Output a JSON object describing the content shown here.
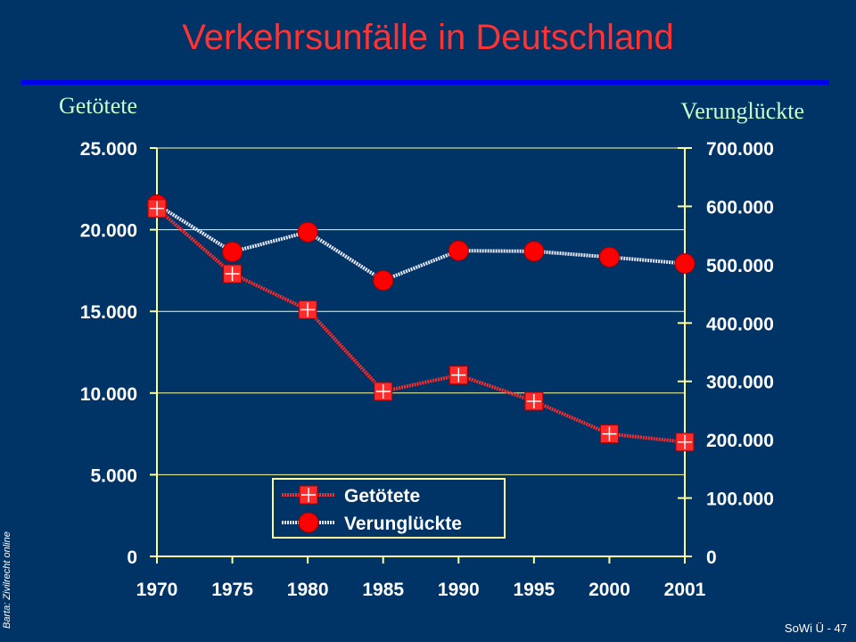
{
  "title": "Verkehrsunfälle in Deutschland",
  "footer": "SoWi Ü - 47",
  "source_note": "Barta: Zivilrecht online",
  "colors": {
    "background": "#003366",
    "title": "#ff3333",
    "rule": "#0000ee",
    "axis": "#ffff99",
    "killed": "#ff2a2a",
    "injured_line": "#e8e8f4",
    "injured_marker": "#ff0000"
  },
  "chart_data": {
    "type": "line",
    "left_axis_title": "Getötete",
    "right_axis_title": "Verunglückte",
    "categories": [
      "1970",
      "1975",
      "1980",
      "1985",
      "1990",
      "1995",
      "2000",
      "2001"
    ],
    "left_ylim": [
      0,
      25000
    ],
    "right_ylim": [
      0,
      700000
    ],
    "left_ticks": [
      "0",
      "5.000",
      "10.000",
      "15.000",
      "20.000",
      "25.000"
    ],
    "right_ticks": [
      "0",
      "100.000",
      "200.000",
      "300.000",
      "400.000",
      "500.000",
      "600.000",
      "700.000"
    ],
    "grid": true,
    "legend": "bottom-center",
    "series": [
      {
        "name": "Getötete",
        "axis": "left",
        "marker": "square-cross",
        "values": [
          21300,
          17300,
          15100,
          10100,
          11100,
          9500,
          7500,
          7000
        ]
      },
      {
        "name": "Verunglückte",
        "axis": "right",
        "marker": "circle",
        "values": [
          603000,
          522000,
          556000,
          473000,
          524000,
          523000,
          513000,
          502000
        ]
      }
    ]
  }
}
